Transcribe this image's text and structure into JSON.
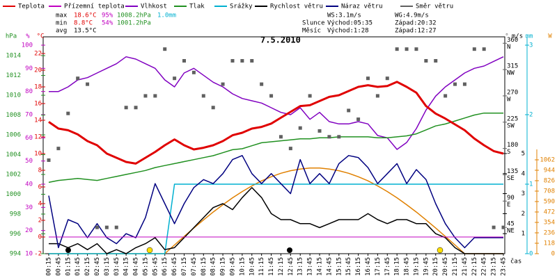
{
  "chart_data": {
    "type": "line",
    "title": "7.5.2010",
    "categories": [
      "00:15",
      "00:45",
      "01:15",
      "01:45",
      "02:15",
      "02:45",
      "03:15",
      "03:45",
      "04:15",
      "04:45",
      "05:15",
      "05:45",
      "06:15",
      "06:45",
      "07:15",
      "07:45",
      "08:15",
      "08:45",
      "09:15",
      "09:45",
      "10:15",
      "10:45",
      "11:15",
      "11:45",
      "12:15",
      "12:45",
      "13:15",
      "13:45",
      "14:15",
      "14:45",
      "15:15",
      "15:45",
      "16:15",
      "16:45",
      "17:15",
      "17:45",
      "18:15",
      "18:45",
      "19:15",
      "19:45",
      "20:15",
      "20:45",
      "21:15",
      "21:45",
      "22:15",
      "22:45",
      "23:15",
      "23:45"
    ],
    "x_label": "čas",
    "axes": {
      "temp": {
        "label": "°C",
        "color": "#e00000",
        "lim": [
          -2,
          24
        ],
        "ticks": [
          -2,
          0,
          2,
          4,
          6,
          8,
          10,
          12,
          14,
          16,
          18,
          20,
          22
        ]
      },
      "humidity": {
        "label": "%",
        "color": "#c000c0",
        "lim": [
          10,
          103.6
        ],
        "ticks": [
          10,
          20,
          30,
          40,
          50,
          60,
          70,
          80,
          90,
          100
        ]
      },
      "pressure": {
        "label": "hPa",
        "color": "#209020",
        "lim": [
          994,
          1015.9
        ],
        "ticks": [
          994,
          996,
          998,
          1000,
          1002,
          1004,
          1006,
          1008,
          1010,
          1012,
          1014
        ]
      },
      "direction": {
        "label": "°",
        "color": "#606060",
        "lim": [
          0,
          371
        ],
        "ticks": [
          45,
          90,
          135,
          180,
          225,
          270,
          315,
          360
        ],
        "compass": [
          "NE",
          "E",
          "SE",
          "S",
          "SW",
          "W",
          "NW",
          "N"
        ]
      },
      "wind": {
        "label": "m/s",
        "color": "#000000",
        "lim": [
          0,
          10.83
        ],
        "ticks": [
          1,
          2,
          3,
          4,
          5
        ]
      },
      "rain": {
        "label": "mm",
        "color": "#00b0d0",
        "lim": [
          0,
          3.12
        ],
        "ticks": [
          0,
          1,
          2,
          3
        ]
      },
      "solar": {
        "label": "W",
        "color": "#e08000",
        "lim": [
          0,
          2454
        ],
        "ticks": [
          0,
          118,
          236,
          354,
          472,
          590,
          708,
          826,
          944,
          1062
        ]
      }
    },
    "series": [
      {
        "name": "Teplota",
        "color": "#e00000",
        "axis": "temp",
        "style": "line",
        "width": 3,
        "values": [
          13.8,
          13.0,
          12.8,
          12.3,
          11.5,
          11.0,
          10.0,
          9.5,
          9.0,
          8.8,
          9.5,
          10.2,
          11.0,
          11.7,
          11.0,
          10.5,
          10.7,
          11.0,
          11.5,
          12.2,
          12.5,
          13.0,
          13.2,
          13.6,
          14.3,
          15.0,
          15.7,
          15.8,
          16.3,
          16.8,
          17.0,
          17.5,
          18.0,
          18.2,
          18.0,
          18.1,
          18.6,
          18.0,
          17.3,
          15.7,
          14.8,
          14.2,
          13.5,
          12.8,
          11.8,
          11.0,
          10.3,
          10.0
        ]
      },
      {
        "name": "Přízemní teplota",
        "color": "#c000c0",
        "axis": "temp",
        "style": "line",
        "width": 1,
        "values": [
          0,
          0,
          0,
          0,
          0,
          0,
          0,
          0,
          0,
          0,
          0,
          0,
          0,
          0,
          0,
          0,
          0,
          0,
          0,
          0,
          0,
          0,
          0,
          0,
          0,
          0,
          0,
          0,
          0,
          0,
          0,
          0,
          0,
          0,
          0,
          0,
          0,
          0,
          0,
          0,
          0,
          0,
          0,
          0,
          0,
          0,
          0,
          0
        ]
      },
      {
        "name": "Vlhkost",
        "color": "#8000c0",
        "axis": "humidity",
        "style": "line",
        "width": 1.5,
        "values": [
          80,
          80,
          82,
          85,
          86,
          88,
          90,
          92,
          95,
          94,
          92,
          90,
          85,
          82,
          88,
          90,
          87,
          84,
          82,
          79,
          77,
          76,
          75,
          73,
          71,
          70,
          73,
          68,
          71,
          67,
          66,
          66,
          67,
          66,
          61,
          60,
          55,
          58,
          64,
          72,
          78,
          82,
          85,
          88,
          90,
          91,
          93,
          95
        ]
      },
      {
        "name": "Tlak",
        "color": "#209020",
        "axis": "pressure",
        "style": "line",
        "width": 1.5,
        "values": [
          1001.2,
          1001.4,
          1001.5,
          1001.6,
          1001.5,
          1001.4,
          1001.6,
          1001.8,
          1002.0,
          1002.2,
          1002.4,
          1002.7,
          1002.9,
          1003.1,
          1003.3,
          1003.5,
          1003.7,
          1003.9,
          1004.2,
          1004.5,
          1004.6,
          1004.9,
          1005.2,
          1005.3,
          1005.4,
          1005.5,
          1005.6,
          1005.6,
          1005.7,
          1005.7,
          1005.8,
          1005.8,
          1005.8,
          1005.8,
          1005.7,
          1005.7,
          1005.8,
          1005.9,
          1006.1,
          1006.5,
          1006.9,
          1007.1,
          1007.4,
          1007.7,
          1008.0,
          1008.2,
          1008.2,
          1008.2
        ]
      },
      {
        "name": "Srážky",
        "color": "#00b0d0",
        "axis": "rain",
        "style": "line",
        "width": 1.5,
        "values": [
          0,
          0,
          0,
          0,
          0,
          0,
          0,
          0,
          0,
          0,
          0,
          0,
          0,
          1.0,
          1.0,
          1.0,
          1.0,
          1.0,
          1.0,
          1.0,
          1.0,
          1.0,
          1.0,
          1.0,
          1.0,
          1.0,
          1.0,
          1.0,
          1.0,
          1.0,
          1.0,
          1.0,
          1.0,
          1.0,
          1.0,
          1.0,
          1.0,
          1.0,
          1.0,
          1.0,
          1.0,
          1.0,
          1.0,
          1.0,
          1.0,
          1.0,
          1.0,
          1.0
        ]
      },
      {
        "name": "Rychlost větru",
        "color": "#000000",
        "axis": "wind",
        "style": "line",
        "width": 1.5,
        "values": [
          0.5,
          0.5,
          0.3,
          0.5,
          0.2,
          0.5,
          0,
          0.2,
          0,
          0.3,
          0.5,
          0.8,
          0.2,
          0.3,
          0.8,
          1.3,
          1.8,
          2.3,
          2.5,
          2.2,
          2.8,
          3.3,
          2.8,
          2.0,
          1.7,
          1.7,
          1.5,
          1.5,
          1.3,
          1.5,
          1.7,
          1.7,
          1.7,
          2.0,
          1.7,
          1.5,
          1.7,
          1.7,
          1.5,
          1.5,
          1.0,
          0.8,
          0.3,
          0,
          0,
          0,
          0,
          0
        ]
      },
      {
        "name": "Náraz větru",
        "color": "#000080",
        "axis": "wind",
        "style": "line",
        "width": 1.5,
        "values": [
          2.9,
          0.3,
          1.7,
          1.5,
          0.8,
          1.5,
          0.8,
          0.5,
          1.0,
          0.8,
          1.8,
          3.5,
          2.5,
          1.5,
          2.5,
          3.3,
          3.7,
          3.5,
          4.0,
          4.7,
          4.9,
          4.0,
          3.5,
          4.0,
          3.5,
          3.0,
          4.7,
          3.5,
          4.0,
          3.5,
          4.5,
          4.9,
          4.8,
          4.3,
          3.5,
          4.0,
          4.5,
          3.5,
          4.2,
          3.7,
          2.5,
          1.5,
          0.8,
          0.3,
          0.8,
          0.8,
          0.8,
          0.8
        ]
      },
      {
        "name": "Směr větru",
        "color": "#606060",
        "axis": "direction",
        "style": "square",
        "values": [
          160,
          180,
          240,
          300,
          290,
          45,
          45,
          45,
          250,
          250,
          270,
          270,
          350,
          300,
          330,
          310,
          270,
          250,
          290,
          330,
          330,
          330,
          290,
          270,
          200,
          180,
          215,
          270,
          210,
          200,
          200,
          245,
          230,
          300,
          270,
          300,
          350,
          350,
          350,
          330,
          330,
          270,
          290,
          290,
          350,
          350,
          45,
          45
        ]
      },
      {
        "color": "#e08000",
        "axis": "solar",
        "style": "line",
        "width": 1.5,
        "values": [
          0,
          0,
          0,
          0,
          0,
          0,
          0,
          0,
          0,
          0,
          0,
          0,
          0,
          98,
          195,
          290,
          382,
          471,
          554,
          632,
          703,
          767,
          824,
          871,
          910,
          939,
          958,
          969,
          969,
          958,
          939,
          910,
          871,
          824,
          767,
          703,
          632,
          554,
          471,
          382,
          290,
          195,
          98,
          0,
          0,
          0,
          0,
          0
        ]
      }
    ],
    "stats": [
      {
        "label": "max",
        "temp": "18.6°C",
        "humidity": "95%",
        "pressure": "1008.2hPa",
        "rain": "1.0mm"
      },
      {
        "label": "min",
        "temp": "8.8°C",
        "humidity": "54%",
        "pressure": "1001.2hPa"
      },
      {
        "label": "avg",
        "temp": "13.5°C"
      }
    ],
    "info": {
      "ws": "WS:3.1m/s",
      "wg": "WG:4.9m/s",
      "sun": "Slunce",
      "sunrise": "Východ:05:35",
      "sunset": "Západ:20:32",
      "moon": "Měsíc",
      "moonrise": "Východ:1:28",
      "moonset": "Západ:12:27"
    }
  }
}
